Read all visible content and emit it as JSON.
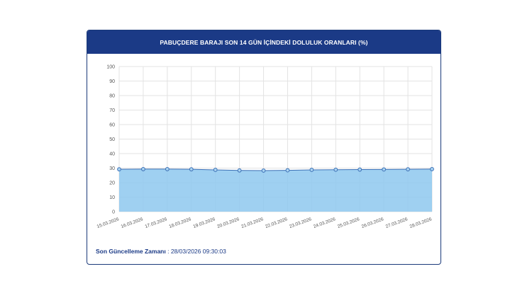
{
  "card": {
    "title": "PABUÇDERE BARAJI SON 14 GÜN İÇİNDEKİ DOLULUK ORANLARI (%)",
    "footer_label": "Son Güncelleme Zamanı",
    "footer_sep": " : ",
    "footer_value": "28/03/2026 09:30:03"
  },
  "colors": {
    "header": "#1b3a86",
    "area_fill": "#8ec8ee",
    "line": "#3b6fb5",
    "grid": "#e3e3e3"
  },
  "chart_data": {
    "type": "area",
    "x": [
      "15.03.2026",
      "16.03.2026",
      "17.03.2026",
      "18.03.2026",
      "19.03.2026",
      "20.03.2026",
      "21.03.2026",
      "22.03.2026",
      "23.03.2026",
      "24.03.2026",
      "25.03.2026",
      "26.03.2026",
      "27.03.2026",
      "28.03.2026"
    ],
    "series": [
      {
        "values": [
          29.2,
          29.3,
          29.3,
          29.2,
          28.8,
          28.4,
          28.3,
          28.5,
          28.8,
          28.9,
          29.0,
          29.1,
          29.2,
          29.3
        ]
      }
    ],
    "ylim": [
      0,
      100
    ],
    "yticks": [
      0,
      10,
      20,
      30,
      40,
      50,
      60,
      70,
      80,
      90,
      100
    ],
    "grid": true
  }
}
